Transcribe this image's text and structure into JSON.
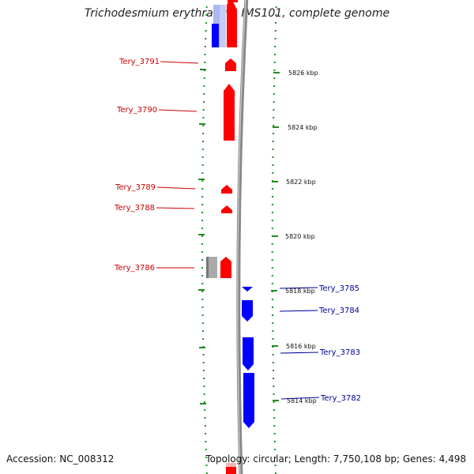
{
  "header": {
    "title": "Trichodesmium erythraeum IMS101, complete genome"
  },
  "footer": {
    "accession": "Accession: NC_008312",
    "topology": "Topology: circular; Length: 7,750,108 bp; Genes: 4,498"
  },
  "colors": {
    "forward": "#ff0000",
    "reverse": "#0000ff",
    "forward_label": "#cc0000",
    "reverse_label": "#000099",
    "ticks": "#228b22",
    "backbone": "#888888",
    "grey_feature": "#aaaaaa"
  },
  "kbp_labels": [
    "5826 kbp",
    "5824 kbp",
    "5822 kbp",
    "5820 kbp",
    "5818 kbp",
    "5816 kbp",
    "5814 kbp"
  ],
  "genes_forward": [
    {
      "label": "Tery_3791"
    },
    {
      "label": "Tery_3790"
    },
    {
      "label": "Tery_3789"
    },
    {
      "label": "Tery_3788"
    },
    {
      "label": "Tery_3786"
    }
  ],
  "genes_reverse": [
    {
      "label": "Tery_3785"
    },
    {
      "label": "Tery_3784"
    },
    {
      "label": "Tery_3783"
    },
    {
      "label": "Tery_3782"
    }
  ]
}
